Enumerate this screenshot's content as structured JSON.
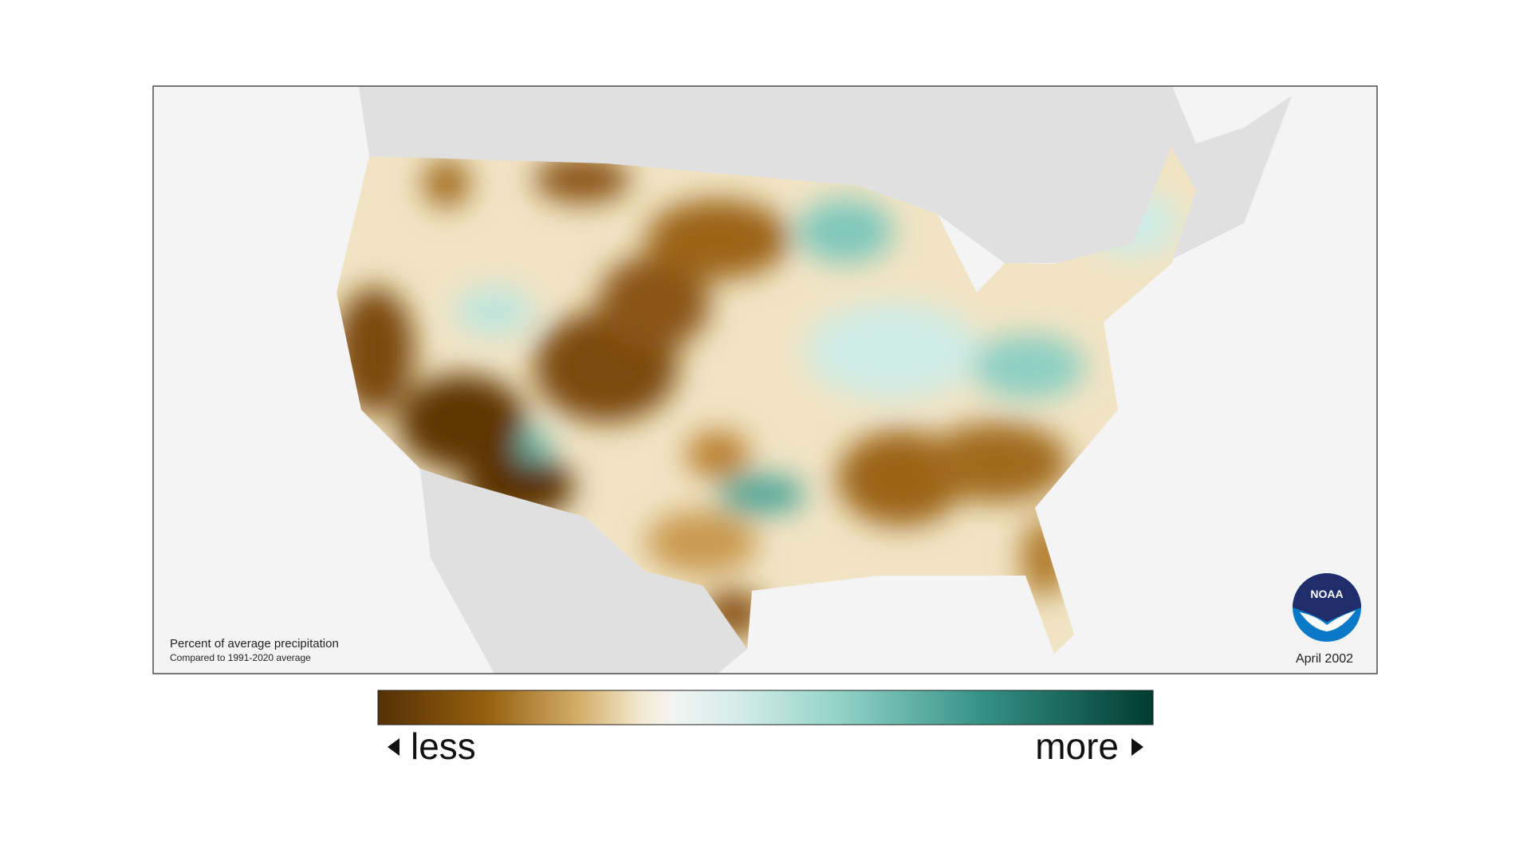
{
  "map": {
    "caption": {
      "title": "Percent of average precipitation",
      "subtitle": "Compared to 1991-2020 average"
    },
    "date": "April 2002",
    "legend": {
      "low": "less",
      "high": "more"
    },
    "logo": "NOAA"
  }
}
